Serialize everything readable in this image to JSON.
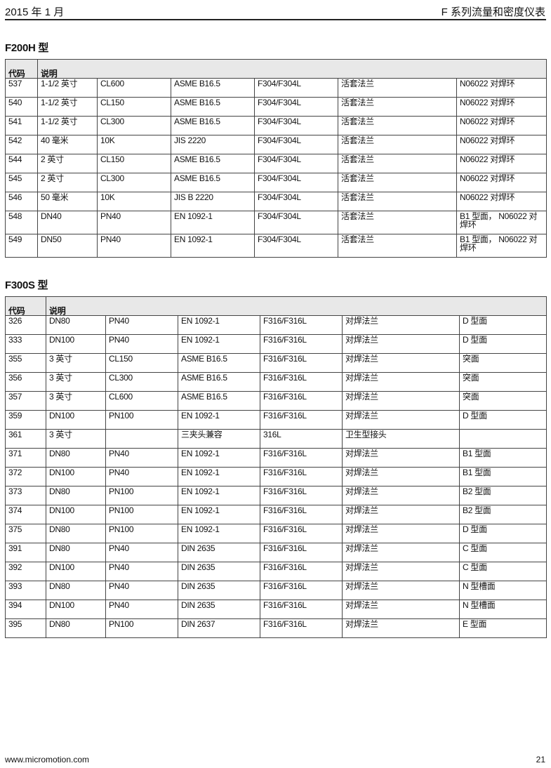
{
  "header": {
    "date": "2015 年 1 月",
    "title": "F 系列流量和密度仪表"
  },
  "tables": [
    {
      "title": "F200H 型",
      "col_code": "代码",
      "col_desc": "说明",
      "rows": [
        [
          "537",
          "1-1/2 英寸",
          "CL600",
          "ASME B16.5",
          "F304/F304L",
          "活套法兰",
          "N06022 对焊环"
        ],
        [
          "540",
          "1-1/2 英寸",
          "CL150",
          "ASME B16.5",
          "F304/F304L",
          "活套法兰",
          "N06022 对焊环"
        ],
        [
          "541",
          "1-1/2 英寸",
          "CL300",
          "ASME B16.5",
          "F304/F304L",
          "活套法兰",
          "N06022 对焊环"
        ],
        [
          "542",
          "40 毫米",
          "10K",
          "JIS 2220",
          "F304/F304L",
          "活套法兰",
          "N06022 对焊环"
        ],
        [
          "544",
          "2 英寸",
          "CL150",
          "ASME B16.5",
          "F304/F304L",
          "活套法兰",
          "N06022 对焊环"
        ],
        [
          "545",
          "2 英寸",
          "CL300",
          "ASME B16.5",
          "F304/F304L",
          "活套法兰",
          "N06022 对焊环"
        ],
        [
          "546",
          "50 毫米",
          "10K",
          "JIS B 2220",
          "F304/F304L",
          "活套法兰",
          "N06022 对焊环"
        ],
        [
          "548",
          "DN40",
          "PN40",
          "EN 1092-1",
          "F304/F304L",
          "活套法兰",
          "B1 型面， N06022 对焊环"
        ],
        [
          "549",
          "DN50",
          "PN40",
          "EN 1092-1",
          "F304/F304L",
          "活套法兰",
          "B1 型面， N06022 对焊环"
        ]
      ]
    },
    {
      "title": "F300S 型",
      "col_code": "代码",
      "col_desc": "说明",
      "rows": [
        [
          "326",
          "DN80",
          "PN40",
          "EN 1092-1",
          "F316/F316L",
          "对焊法兰",
          "D 型面"
        ],
        [
          "333",
          "DN100",
          "PN40",
          "EN 1092-1",
          "F316/F316L",
          "对焊法兰",
          "D 型面"
        ],
        [
          "355",
          "3 英寸",
          "CL150",
          "ASME B16.5",
          "F316/F316L",
          "对焊法兰",
          "突面"
        ],
        [
          "356",
          "3 英寸",
          "CL300",
          "ASME B16.5",
          "F316/F316L",
          "对焊法兰",
          "突面"
        ],
        [
          "357",
          "3 英寸",
          "CL600",
          "ASME B16.5",
          "F316/F316L",
          "对焊法兰",
          "突面"
        ],
        [
          "359",
          "DN100",
          "PN100",
          "EN 1092-1",
          "F316/F316L",
          "对焊法兰",
          "D 型面"
        ],
        [
          "361",
          "3 英寸",
          "",
          "三夹头兼容",
          "316L",
          "卫生型接头",
          ""
        ],
        [
          "371",
          "DN80",
          "PN40",
          "EN 1092-1",
          "F316/F316L",
          "对焊法兰",
          "B1 型面"
        ],
        [
          "372",
          "DN100",
          "PN40",
          "EN 1092-1",
          "F316/F316L",
          "对焊法兰",
          "B1 型面"
        ],
        [
          "373",
          "DN80",
          "PN100",
          "EN 1092-1",
          "F316/F316L",
          "对焊法兰",
          "B2 型面"
        ],
        [
          "374",
          "DN100",
          "PN100",
          "EN 1092-1",
          "F316/F316L",
          "对焊法兰",
          "B2 型面"
        ],
        [
          "375",
          "DN80",
          "PN100",
          "EN 1092-1",
          "F316/F316L",
          "对焊法兰",
          "D 型面"
        ],
        [
          "391",
          "DN80",
          "PN40",
          "DIN 2635",
          "F316/F316L",
          "对焊法兰",
          "C 型面"
        ],
        [
          "392",
          "DN100",
          "PN40",
          "DIN 2635",
          "F316/F316L",
          "对焊法兰",
          "C 型面"
        ],
        [
          "393",
          "DN80",
          "PN40",
          "DIN 2635",
          "F316/F316L",
          "对焊法兰",
          "N 型槽面"
        ],
        [
          "394",
          "DN100",
          "PN40",
          "DIN 2635",
          "F316/F316L",
          "对焊法兰",
          "N 型槽面"
        ],
        [
          "395",
          "DN80",
          "PN100",
          "DIN 2637",
          "F316/F316L",
          "对焊法兰",
          "E 型面"
        ]
      ]
    }
  ],
  "footer": {
    "url": "www.micromotion.com",
    "page": "21"
  }
}
